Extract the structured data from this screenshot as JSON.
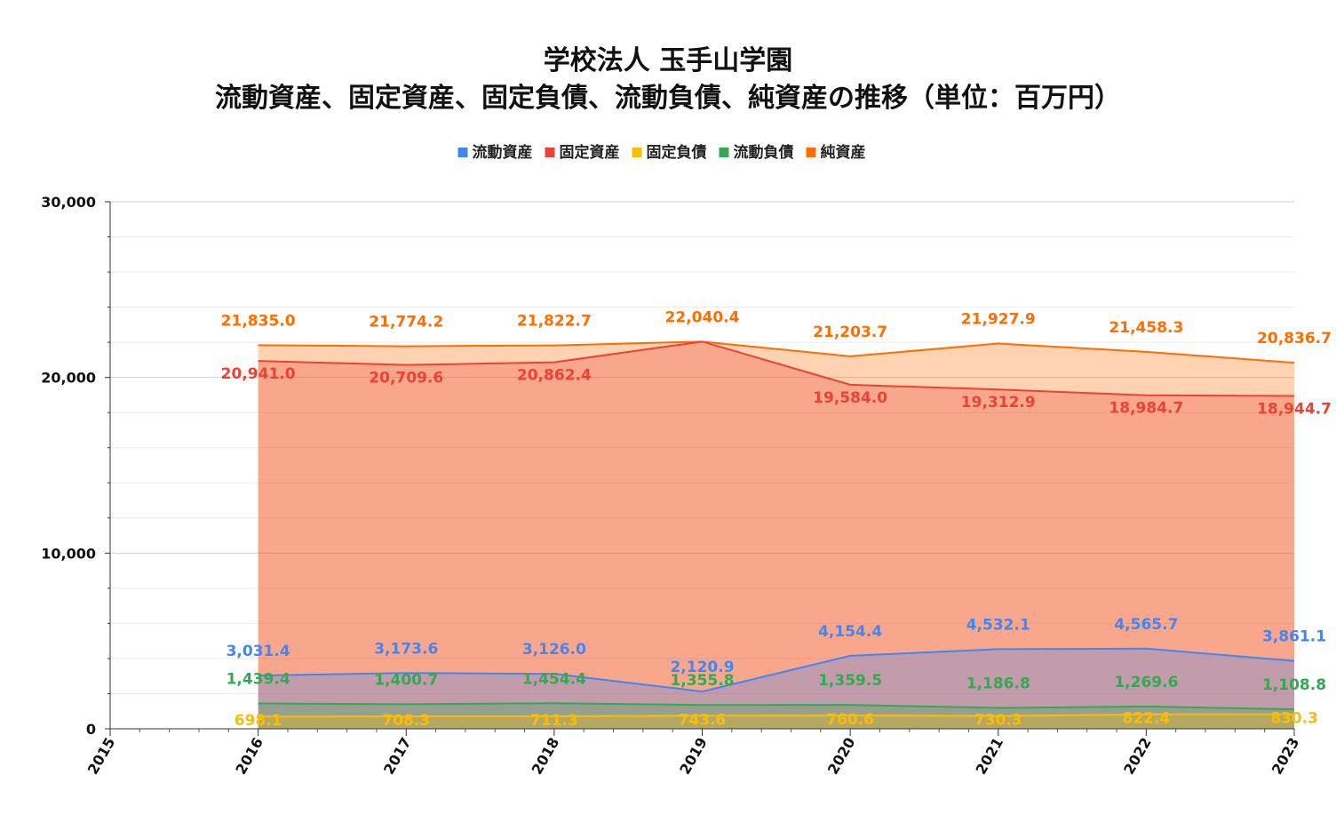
{
  "chart_data": {
    "type": "area",
    "title": [
      "学校法人 玉手山学園",
      "流動資産、固定資産、固定負債、流動負債、純資産の推移（単位：百万円）"
    ],
    "xlabel": "",
    "ylabel": "",
    "x_ticks": [
      "2015",
      "2016",
      "2017",
      "2018",
      "2019",
      "2020",
      "2021",
      "2022",
      "2023"
    ],
    "y_ticks": [
      "0",
      "10,000",
      "20,000",
      "30,000"
    ],
    "ylim": [
      0,
      30000
    ],
    "grid": true,
    "legend_position": "top",
    "categories": [
      "2016",
      "2017",
      "2018",
      "2019",
      "2020",
      "2021",
      "2022",
      "2023"
    ],
    "series": [
      {
        "name": "流動資産",
        "color": "#4285F4",
        "values": [
          3031.4,
          3173.6,
          3126.0,
          2120.9,
          4154.4,
          4532.1,
          4565.7,
          3861.1
        ],
        "labels": [
          "3,031.4",
          "3,173.6",
          "3,126.0",
          "2,120.9",
          "4,154.4",
          "4,532.1",
          "4,565.7",
          "3,861.1"
        ]
      },
      {
        "name": "固定資産",
        "color": "#EA4335",
        "values": [
          20941.0,
          20709.6,
          20862.4,
          22040.4,
          19584.0,
          19312.9,
          18984.7,
          18944.7
        ],
        "labels": [
          "20,941.0",
          "20,709.6",
          "20,862.4",
          "",
          "19,584.0",
          "19,312.9",
          "18,984.7",
          "18,944.7"
        ]
      },
      {
        "name": "固定負債",
        "color": "#FBBC04",
        "values": [
          698.1,
          708.3,
          711.3,
          743.6,
          760.6,
          730.3,
          822.4,
          830.3
        ],
        "labels": [
          "698.1",
          "708.3",
          "711.3",
          "743.6",
          "760.6",
          "730.3",
          "822.4",
          "830.3"
        ]
      },
      {
        "name": "流動負債",
        "color": "#34A853",
        "values": [
          1439.4,
          1400.7,
          1454.4,
          1355.8,
          1359.5,
          1186.8,
          1269.6,
          1108.8
        ],
        "labels": [
          "1,439.4",
          "1,400.7",
          "1,454.4",
          "1,355.8",
          "1,359.5",
          "1,186.8",
          "1,269.6",
          "1,108.8"
        ]
      },
      {
        "name": "純資産",
        "color": "#FF6D01",
        "values": [
          21835.0,
          21774.2,
          21822.7,
          22040.4,
          21203.7,
          21927.9,
          21458.3,
          20836.7
        ],
        "labels": [
          "21,835.0",
          "21,774.2",
          "21,822.7",
          "22,040.4",
          "21,203.7",
          "21,927.9",
          "21,458.3",
          "20,836.7"
        ]
      }
    ]
  }
}
